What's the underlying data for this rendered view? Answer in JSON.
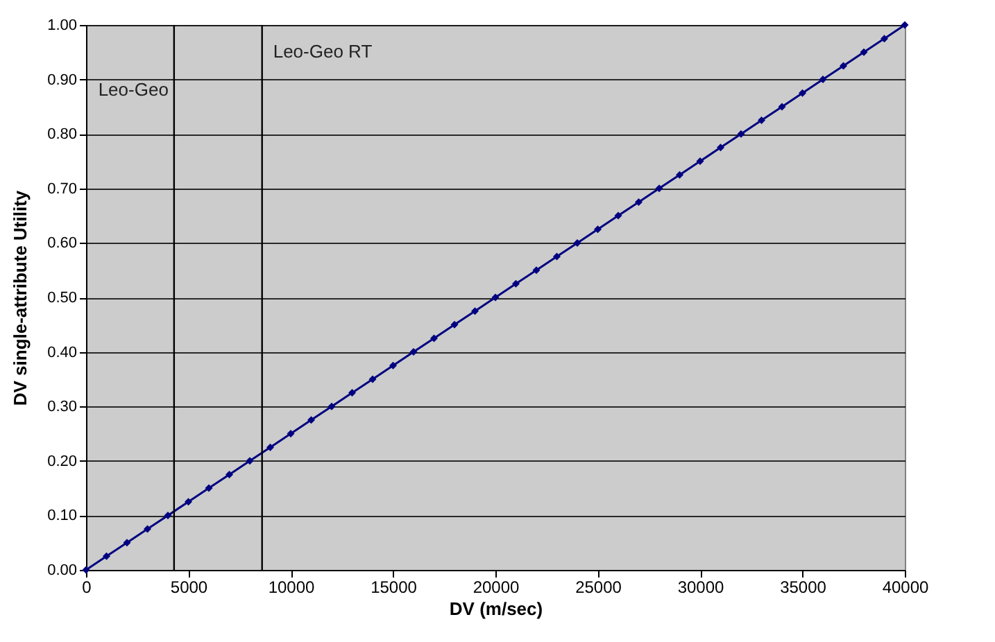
{
  "chart_data": {
    "type": "line",
    "xlabel": "DV  (m/sec)",
    "ylabel": "DV  single-attribute  Utility",
    "x": [
      0,
      1000,
      2000,
      3000,
      4000,
      5000,
      6000,
      7000,
      8000,
      9000,
      10000,
      11000,
      12000,
      13000,
      14000,
      15000,
      16000,
      17000,
      18000,
      19000,
      20000,
      21000,
      22000,
      23000,
      24000,
      25000,
      26000,
      27000,
      28000,
      29000,
      30000,
      31000,
      32000,
      33000,
      34000,
      35000,
      36000,
      37000,
      38000,
      39000,
      40000
    ],
    "series": [
      {
        "color": "#000080",
        "values": [
          0,
          0.025,
          0.05,
          0.075,
          0.1,
          0.125,
          0.15,
          0.175,
          0.2,
          0.225,
          0.25,
          0.275,
          0.3,
          0.325,
          0.35,
          0.375,
          0.4,
          0.425,
          0.45,
          0.475,
          0.5,
          0.525,
          0.55,
          0.575,
          0.6,
          0.625,
          0.65,
          0.675,
          0.7,
          0.725,
          0.75,
          0.775,
          0.8,
          0.825,
          0.85,
          0.875,
          0.9,
          0.925,
          0.95,
          0.975,
          1
        ]
      }
    ],
    "xlim": [
      0,
      40000
    ],
    "xticks": [
      0,
      5000,
      10000,
      15000,
      20000,
      25000,
      30000,
      35000,
      40000
    ],
    "ylim": [
      0,
      1
    ],
    "yticks": [
      {
        "value": 0,
        "label": "0.00"
      },
      {
        "value": 0.1,
        "label": "0.10"
      },
      {
        "value": 0.2,
        "label": "0.20"
      },
      {
        "value": 0.3,
        "label": "0.30"
      },
      {
        "value": 0.4,
        "label": "0.40"
      },
      {
        "value": 0.5,
        "label": "0.50"
      },
      {
        "value": 0.6,
        "label": "0.60"
      },
      {
        "value": 0.7,
        "label": "0.70"
      },
      {
        "value": 0.8,
        "label": "0.80"
      },
      {
        "value": 0.9,
        "label": "0.90"
      },
      {
        "value": 1,
        "label": "1.00"
      }
    ],
    "ref_lines": [
      {
        "axis": "x",
        "value": 4300,
        "label": "Leo-Geo",
        "color": "#000000"
      },
      {
        "axis": "x",
        "value": 8600,
        "label": "Leo-Geo RT",
        "color": "#000000"
      }
    ],
    "grid": "y",
    "marker": "diamond",
    "line_style": "solid",
    "legend": false
  }
}
